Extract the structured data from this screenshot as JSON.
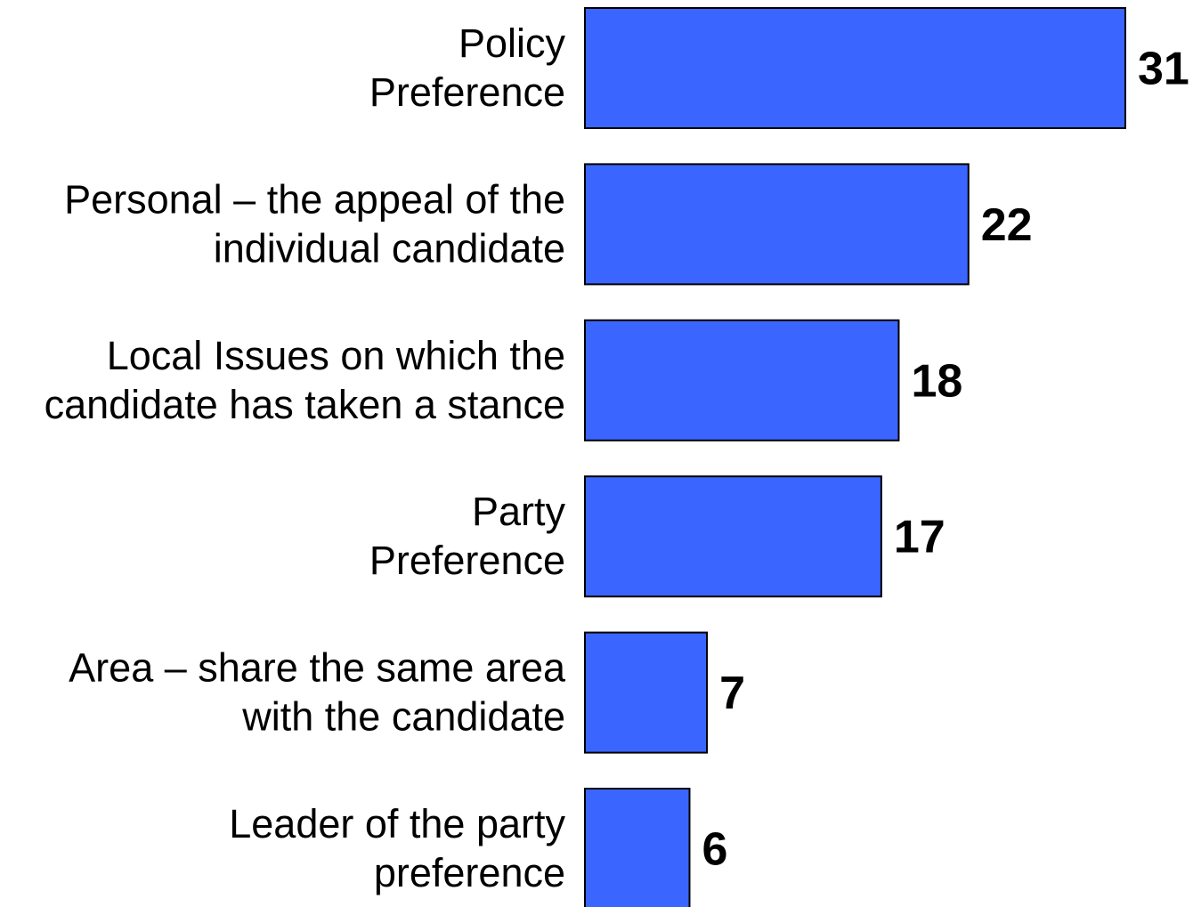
{
  "chart_data": {
    "type": "bar",
    "orientation": "horizontal",
    "categories": [
      [
        "Policy",
        "Preference"
      ],
      [
        "Personal – the appeal of the",
        "individual candidate"
      ],
      [
        "Local Issues on which the",
        "candidate has taken a stance"
      ],
      [
        "Party",
        "Preference"
      ],
      [
        "Area – share the same area",
        "with the candidate"
      ],
      [
        "Leader of the party",
        "preference"
      ]
    ],
    "values": [
      31,
      22,
      18,
      17,
      7,
      6
    ],
    "data_labels": [
      "31",
      "22",
      "18",
      "17",
      "7",
      "6"
    ],
    "xlim": [
      0,
      31
    ],
    "bar_color": "#3a66ff",
    "grid": false,
    "legend": "none",
    "title": "",
    "xlabel": "",
    "ylabel": ""
  }
}
